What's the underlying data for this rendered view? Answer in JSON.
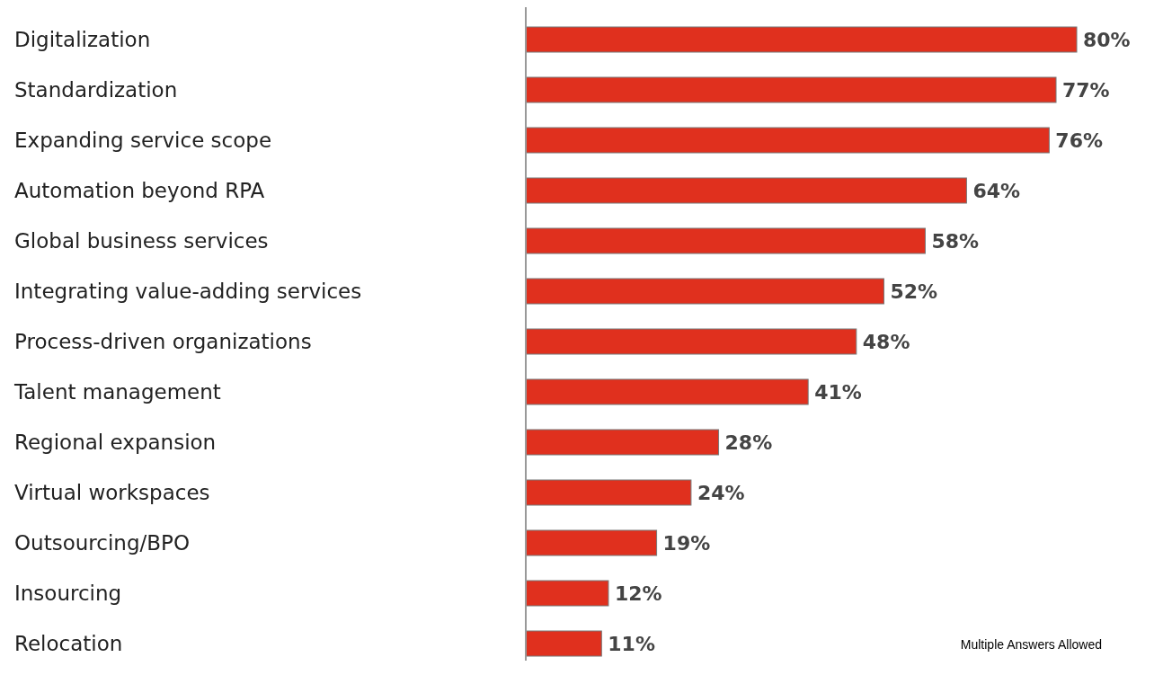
{
  "chart_data": {
    "type": "bar",
    "orientation": "horizontal",
    "categories": [
      "Digitalization",
      "Standardization",
      "Expanding service scope",
      "Automation beyond RPA",
      "Global business services",
      "Integrating value-adding services",
      "Process-driven organizations",
      "Talent management",
      "Regional expansion",
      "Virtual workspaces",
      "Outsourcing/BPO",
      "Insourcing",
      "Relocation"
    ],
    "values": [
      80,
      77,
      76,
      64,
      58,
      52,
      48,
      41,
      28,
      24,
      19,
      12,
      11
    ],
    "value_labels": [
      "80%",
      "77%",
      "76%",
      "64%",
      "58%",
      "52%",
      "48%",
      "41%",
      "28%",
      "24%",
      "19%",
      "12%",
      "11%"
    ],
    "color": "#e0301e",
    "annotations": [
      "Multiple Answers Allowed"
    ]
  }
}
